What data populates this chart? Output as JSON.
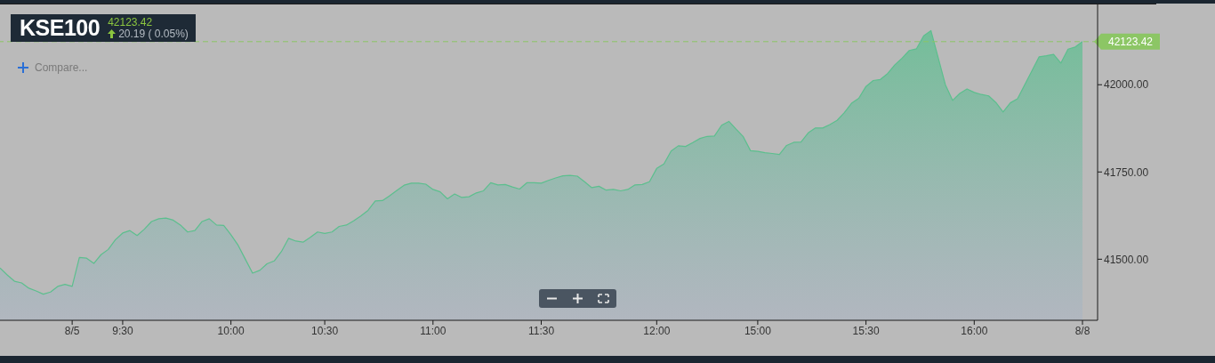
{
  "chart_data": {
    "type": "area",
    "title": "KSE100",
    "subtitle": "42123.42",
    "annotations": [
      "20.19 ( 0.05%)",
      "Compare..."
    ],
    "categories": [
      null,
      null,
      null,
      null,
      null,
      null,
      null,
      null,
      null,
      null,
      "8/5",
      null,
      null,
      null,
      null,
      null,
      null,
      "9:30",
      null,
      null,
      null,
      null,
      null,
      null,
      null,
      null,
      null,
      null,
      null,
      null,
      null,
      null,
      "10:00",
      null,
      null,
      null,
      null,
      null,
      null,
      null,
      null,
      null,
      null,
      null,
      null,
      "10:30",
      null,
      null,
      null,
      null,
      null,
      null,
      null,
      null,
      null,
      null,
      null,
      null,
      null,
      null,
      "11:00",
      null,
      null,
      null,
      null,
      null,
      null,
      null,
      null,
      null,
      null,
      null,
      null,
      null,
      null,
      "11:30",
      null,
      null,
      null,
      null,
      null,
      null,
      null,
      null,
      null,
      null,
      null,
      null,
      null,
      null,
      null,
      "12:00",
      null,
      null,
      null,
      null,
      null,
      null,
      null,
      null,
      null,
      null,
      null,
      null,
      null,
      "15:00",
      null,
      null,
      null,
      null,
      null,
      null,
      null,
      null,
      null,
      null,
      null,
      null,
      null,
      null,
      "15:30",
      null,
      null,
      null,
      null,
      null,
      null,
      null,
      null,
      null,
      null,
      null,
      null,
      null,
      null,
      "16:00",
      null,
      null,
      null,
      null,
      null,
      null,
      null,
      null,
      null,
      null,
      null,
      null,
      null,
      null,
      "8/8"
    ],
    "series": [
      {
        "color": "#5cbf8e",
        "values": [
          41475,
          41455,
          41437,
          41432,
          41417,
          41409,
          41400,
          41406,
          41422,
          41428,
          41422,
          41505,
          41503,
          41488,
          41513,
          41528,
          41556,
          41575,
          41582,
          41568,
          41586,
          41608,
          41616,
          41618,
          41612,
          41598,
          41578,
          41582,
          41608,
          41616,
          41598,
          41597,
          41570,
          41540,
          41500,
          41460,
          41468,
          41487,
          41495,
          41522,
          41560,
          41552,
          41549,
          41563,
          41578,
          41574,
          41578,
          41594,
          41598,
          41610,
          41624,
          41640,
          41667,
          41668,
          41682,
          41697,
          41712,
          41718,
          41718,
          41715,
          41700,
          41693,
          41673,
          41687,
          41677,
          41679,
          41690,
          41696,
          41719,
          41713,
          41714,
          41707,
          41701,
          41719,
          41719,
          41718,
          41726,
          41733,
          41739,
          41740,
          41738,
          41722,
          41705,
          41709,
          41698,
          41700,
          41696,
          41700,
          41713,
          41714,
          41722,
          41760,
          41773,
          41810,
          41825,
          41823,
          41834,
          41846,
          41852,
          41853,
          41884,
          41895,
          41873,
          41851,
          41811,
          41809,
          41805,
          41803,
          41800,
          41826,
          41835,
          41836,
          41862,
          41876,
          41876,
          41886,
          41898,
          41920,
          41947,
          41961,
          41995,
          42012,
          42015,
          42032,
          42057,
          42076,
          42098,
          42103,
          42140,
          42155,
          42078,
          42000,
          41955,
          41975,
          41988,
          41978,
          41972,
          41968,
          41949,
          41922,
          41948,
          41960,
          42000,
          42040,
          42080,
          42083,
          42087,
          42062,
          42102,
          42108,
          42123.42
        ]
      }
    ],
    "ylim": [
      41325,
      42230
    ],
    "yticks": [
      {
        "value": 41500,
        "label": "41500.00"
      },
      {
        "value": 41750,
        "label": "41750.00"
      },
      {
        "value": 42000,
        "label": "42000.00"
      }
    ],
    "ref_lines": [
      {
        "axis": "y",
        "value": 42123.42,
        "label": "42123.42",
        "color": "#8cc665",
        "line_style": "dashed"
      }
    ],
    "grid": false,
    "legend": false,
    "marker": "none",
    "line_style": "solid"
  }
}
